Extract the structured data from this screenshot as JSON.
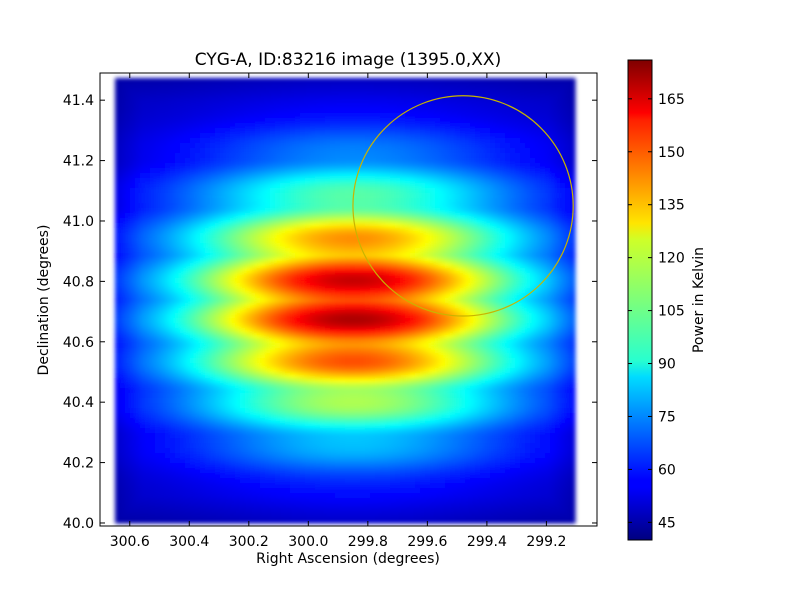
{
  "chart_data": {
    "type": "heatmap",
    "title": "CYG-A, ID:83216 image (1395.0,XX)",
    "xlabel": "Right Ascension (degrees)",
    "ylabel": "Declination (degrees)",
    "xlim": [
      300.7,
      299.03
    ],
    "ylim": [
      39.99,
      41.49
    ],
    "x_ticks": [
      300.6,
      300.4,
      300.2,
      300.0,
      299.8,
      299.6,
      299.4,
      299.2
    ],
    "x_tick_labels": [
      "300.6",
      "300.4",
      "300.2",
      "300.0",
      "299.8",
      "299.6",
      "299.4",
      "299.2"
    ],
    "y_ticks": [
      40.0,
      40.2,
      40.4,
      40.6,
      40.8,
      41.0,
      41.2,
      41.4
    ],
    "y_tick_labels": [
      "40.0",
      "40.2",
      "40.4",
      "40.6",
      "40.8",
      "41.0",
      "41.2",
      "41.4"
    ],
    "colorbar": {
      "label": "Power in Kelvin",
      "colormap": "jet",
      "range": [
        40,
        176
      ],
      "ticks": [
        45,
        60,
        75,
        90,
        105,
        120,
        135,
        150,
        165
      ],
      "tick_labels": [
        "45",
        "60",
        "75",
        "90",
        "105",
        "120",
        "135",
        "150",
        "165"
      ]
    },
    "field_coverage": {
      "ra_range": [
        300.65,
        299.1
      ],
      "dec_range": [
        40.0,
        41.48
      ],
      "background_kelvin": 48
    },
    "peak": {
      "ra": 299.85,
      "dec": 40.72,
      "value_kelvin": 172
    },
    "stripe_declinations": [
      40.22,
      40.37,
      40.52,
      40.67,
      40.81,
      40.96,
      41.12,
      41.27
    ],
    "circle": {
      "ra": 299.48,
      "dec": 41.05,
      "radius_deg": 0.37,
      "color": "#c8b400"
    }
  }
}
